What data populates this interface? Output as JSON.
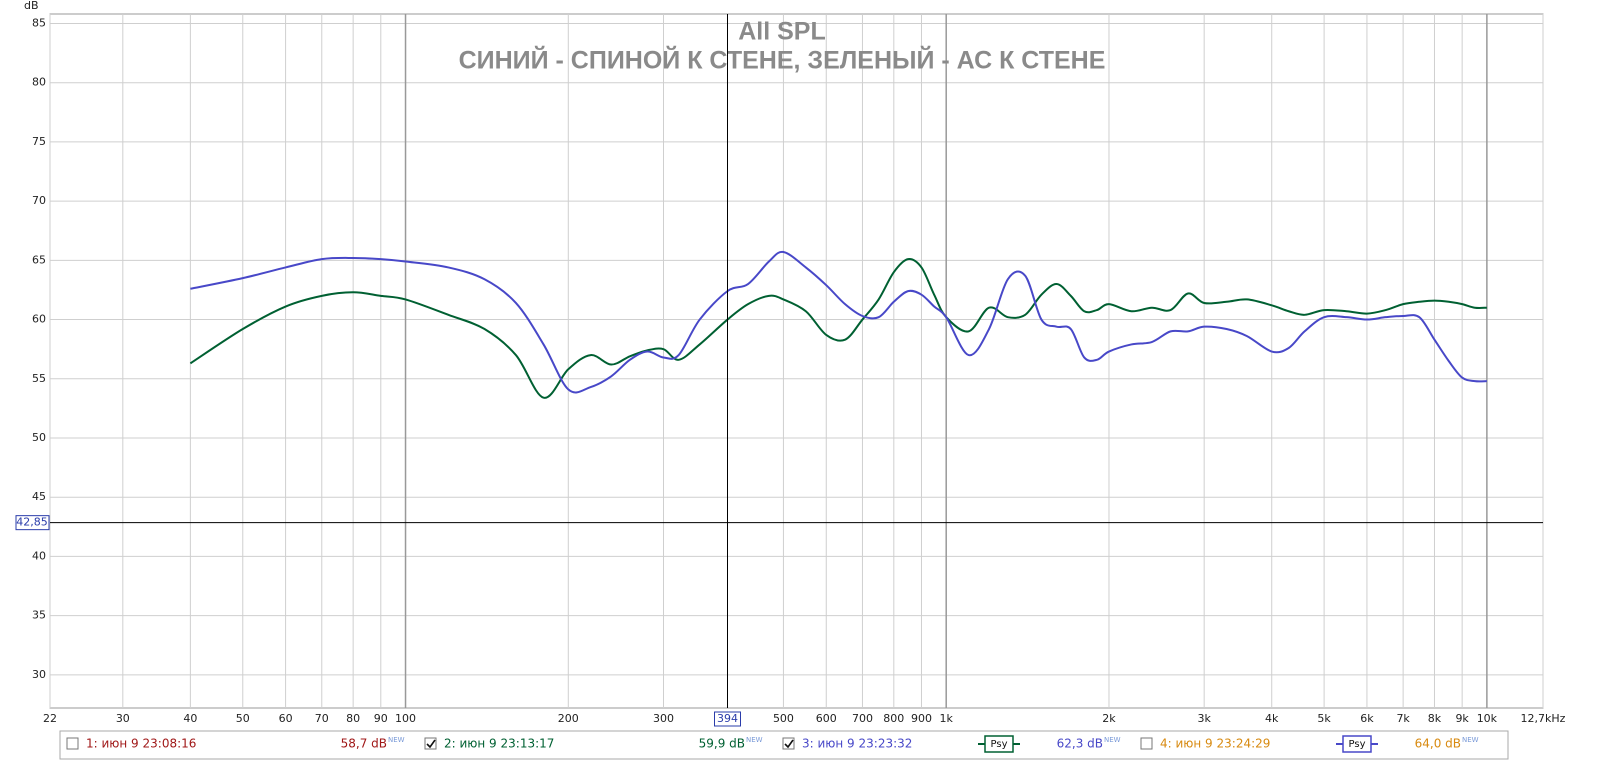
{
  "chart_data": {
    "type": "line",
    "title": "All SPL",
    "subtitle": "СИНИЙ - СПИНОЙ К СТЕНЕ, ЗЕЛЕНЫЙ - АС К СТЕНЕ",
    "y_label": "dB",
    "log_x": true,
    "grid": true,
    "xlim": [
      22,
      12700
    ],
    "ylim": [
      27.2,
      85.8
    ],
    "xticks": [
      22,
      30,
      40,
      50,
      60,
      70,
      80,
      90,
      100,
      200,
      300,
      500,
      600,
      700,
      800,
      900,
      {
        "value": 1000,
        "label": "1k"
      },
      {
        "value": 2000,
        "label": "2k"
      },
      {
        "value": 3000,
        "label": "3k"
      },
      {
        "value": 4000,
        "label": "4k"
      },
      {
        "value": 5000,
        "label": "5k"
      },
      {
        "value": 6000,
        "label": "6k"
      },
      {
        "value": 7000,
        "label": "7k"
      },
      {
        "value": 8000,
        "label": "8k"
      },
      {
        "value": 9000,
        "label": "9k"
      },
      {
        "value": 10000,
        "label": "10k"
      },
      {
        "value": 12700,
        "label": "12,7kHz"
      }
    ],
    "yticks": [
      30,
      35,
      40,
      45,
      50,
      55,
      60,
      65,
      70,
      75,
      80,
      85
    ],
    "cursor": {
      "x": 394,
      "y": {
        "value": 42.85,
        "label": "42,85"
      }
    },
    "x": [
      40,
      50,
      60,
      70,
      80,
      90,
      100,
      120,
      140,
      160,
      180,
      200,
      220,
      240,
      260,
      280,
      300,
      320,
      350,
      394,
      430,
      470,
      500,
      550,
      600,
      650,
      700,
      750,
      800,
      850,
      900,
      950,
      1000,
      1100,
      1200,
      1300,
      1400,
      1500,
      1600,
      1700,
      1800,
      1900,
      2000,
      2200,
      2400,
      2600,
      2800,
      3000,
      3300,
      3600,
      4000,
      4300,
      4600,
      5000,
      5500,
      6000,
      6500,
      7000,
      7500,
      8000,
      8500,
      9000,
      9500,
      10000
    ],
    "series": [
      {
        "name": "1: июн 9 23:08:16",
        "color": "#a01818",
        "checked": false,
        "level": {
          "value": 58.7,
          "label": "58,7 dB"
        },
        "tag": "NEW"
      },
      {
        "name": "2: июн 9 23:13:17",
        "color": "#006032",
        "checked": true,
        "smoothing": "Psy",
        "level": {
          "value": 59.9,
          "label": "59,9 dB"
        },
        "tag": "NEW",
        "values": [
          56.3,
          59.2,
          61.1,
          62.0,
          62.3,
          62.0,
          61.7,
          60.4,
          59.2,
          57.0,
          53.4,
          55.8,
          57.0,
          56.2,
          56.9,
          57.4,
          57.5,
          56.6,
          57.9,
          60.0,
          61.3,
          62.0,
          61.7,
          60.7,
          58.7,
          58.3,
          60.0,
          61.7,
          64.0,
          65.1,
          64.4,
          62.1,
          60.2,
          59.0,
          61.0,
          60.2,
          60.4,
          62.1,
          63.0,
          62.0,
          60.7,
          60.8,
          61.3,
          60.7,
          61.0,
          60.8,
          62.2,
          61.4,
          61.5,
          61.7,
          61.2,
          60.7,
          60.4,
          60.8,
          60.7,
          60.5,
          60.8,
          61.3,
          61.5,
          61.6,
          61.5,
          61.3,
          61.0,
          61.0
        ]
      },
      {
        "name": "3: июн 9 23:23:32",
        "color": "#4848c8",
        "checked": true,
        "smoothing": "Psy",
        "level": {
          "value": 62.3,
          "label": "62,3 dB"
        },
        "tag": "NEW",
        "values": [
          62.6,
          63.5,
          64.4,
          65.1,
          65.2,
          65.1,
          64.9,
          64.4,
          63.4,
          61.4,
          57.9,
          54.1,
          54.3,
          55.2,
          56.6,
          57.3,
          56.8,
          57.0,
          60.0,
          62.4,
          63.0,
          64.9,
          65.7,
          64.4,
          62.9,
          61.3,
          60.3,
          60.2,
          61.5,
          62.4,
          62.1,
          61.1,
          60.2,
          57.0,
          59.2,
          63.4,
          63.7,
          60.0,
          59.4,
          59.2,
          56.8,
          56.6,
          57.3,
          57.9,
          58.1,
          59.0,
          59.0,
          59.4,
          59.2,
          58.6,
          57.3,
          57.6,
          59.0,
          60.2,
          60.2,
          60.0,
          60.2,
          60.3,
          60.2,
          58.3,
          56.5,
          55.1,
          54.8,
          54.8
        ]
      },
      {
        "name": "4: июн 9 23:24:29",
        "color": "#d88a10",
        "checked": false,
        "level": {
          "value": 64.0,
          "label": "64,0 dB"
        },
        "tag": "NEW"
      }
    ]
  }
}
